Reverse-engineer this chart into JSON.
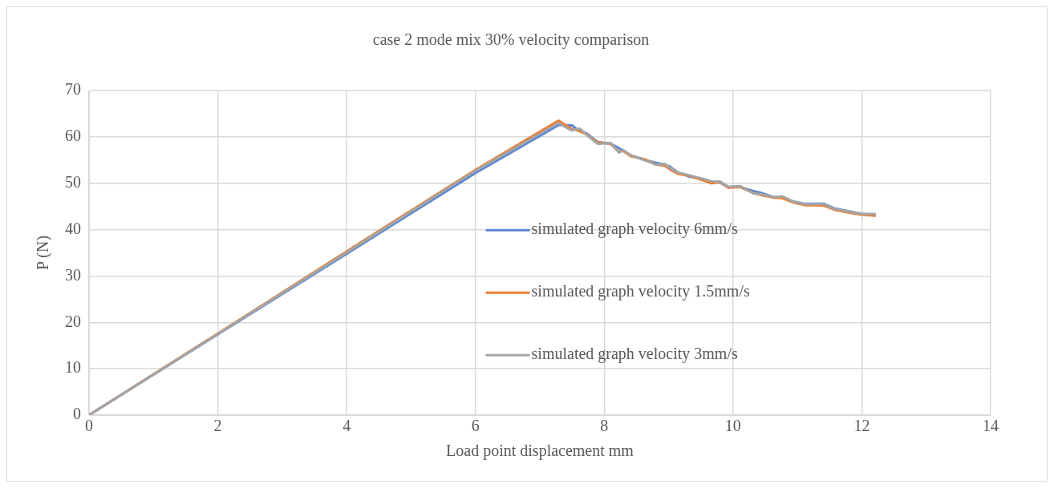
{
  "chart_data": {
    "type": "line",
    "title": "case 2 mode mix 30% velocity comparison",
    "xlabel": "Load point displacement mm",
    "ylabel": "P (N)",
    "xlim": [
      0,
      14
    ],
    "ylim": [
      0,
      70
    ],
    "xticks": [
      0,
      2,
      4,
      6,
      8,
      10,
      12,
      14
    ],
    "yticks": [
      0,
      10,
      20,
      30,
      40,
      50,
      60,
      70
    ],
    "grid": true,
    "legend": "center right",
    "marker": "none",
    "line_style": "solid",
    "series": [
      {
        "name": "simulated graph velocity 6mm/s",
        "color": "#5b87d6",
        "x": [
          0,
          2,
          4,
          6,
          7.3,
          7.5,
          7.6,
          7.72,
          7.9,
          8.1,
          8.23,
          8.29,
          8.42,
          8.63,
          8.81,
          8.94,
          9.02,
          9.15,
          9.33,
          9.5,
          9.67,
          9.8,
          9.93,
          10.11,
          10.32,
          10.45,
          10.63,
          10.76,
          10.93,
          11.1,
          11.41,
          11.57,
          11.79,
          12.0,
          12.22
        ],
        "values": [
          0,
          17.4,
          34.8,
          52.2,
          62.6,
          62.5,
          61.4,
          60.8,
          58.9,
          58.5,
          57.6,
          57.0,
          56.0,
          55.0,
          54.4,
          54.0,
          53.6,
          52.3,
          51.4,
          51.0,
          50.4,
          50.1,
          49.2,
          49.2,
          48.3,
          47.9,
          47.0,
          47.0,
          46.1,
          45.6,
          45.6,
          44.6,
          44.0,
          43.4,
          43.2
        ]
      },
      {
        "name": "simulated graph velocity 1.5mm/s",
        "color": "#ed7d31",
        "x": [
          0,
          2,
          4,
          6,
          7.29,
          7.49,
          7.62,
          7.72,
          7.9,
          8.1,
          8.23,
          8.29,
          8.42,
          8.63,
          8.81,
          8.94,
          9.02,
          9.15,
          9.33,
          9.5,
          9.67,
          9.8,
          9.93,
          10.11,
          10.32,
          10.45,
          10.63,
          10.76,
          10.93,
          11.1,
          11.41,
          11.57,
          11.79,
          12.0,
          12.22
        ],
        "values": [
          0,
          17.6,
          35.3,
          52.9,
          63.5,
          61.8,
          61.2,
          60.6,
          58.8,
          58.5,
          56.8,
          57.0,
          55.8,
          55.2,
          54.0,
          53.8,
          53.0,
          52.0,
          51.6,
          50.8,
          50.0,
          50.3,
          49.0,
          49.2,
          47.9,
          47.4,
          46.9,
          46.8,
          45.9,
          45.3,
          45.2,
          44.3,
          43.7,
          43.2,
          43.0
        ]
      },
      {
        "name": "simulated graph velocity 3mm/s",
        "color": "#a5a5a5",
        "x": [
          0,
          2,
          4,
          6,
          7.29,
          7.49,
          7.62,
          7.72,
          7.9,
          8.1,
          8.23,
          8.29,
          8.42,
          8.63,
          8.81,
          8.94,
          9.02,
          9.15,
          9.33,
          9.5,
          9.67,
          9.8,
          9.93,
          10.11,
          10.32,
          10.45,
          10.63,
          10.76,
          10.93,
          11.1,
          11.41,
          11.57,
          11.79,
          12.0,
          12.22
        ],
        "values": [
          0,
          17.5,
          35.1,
          52.7,
          63.0,
          61.4,
          61.8,
          60.5,
          58.5,
          58.7,
          56.6,
          57.2,
          56.0,
          55.0,
          54.0,
          54.2,
          53.3,
          52.3,
          51.7,
          51.1,
          50.4,
          50.4,
          49.2,
          49.4,
          47.8,
          47.6,
          47.0,
          47.2,
          46.1,
          45.5,
          45.5,
          44.5,
          43.9,
          43.4,
          43.4
        ]
      }
    ]
  }
}
